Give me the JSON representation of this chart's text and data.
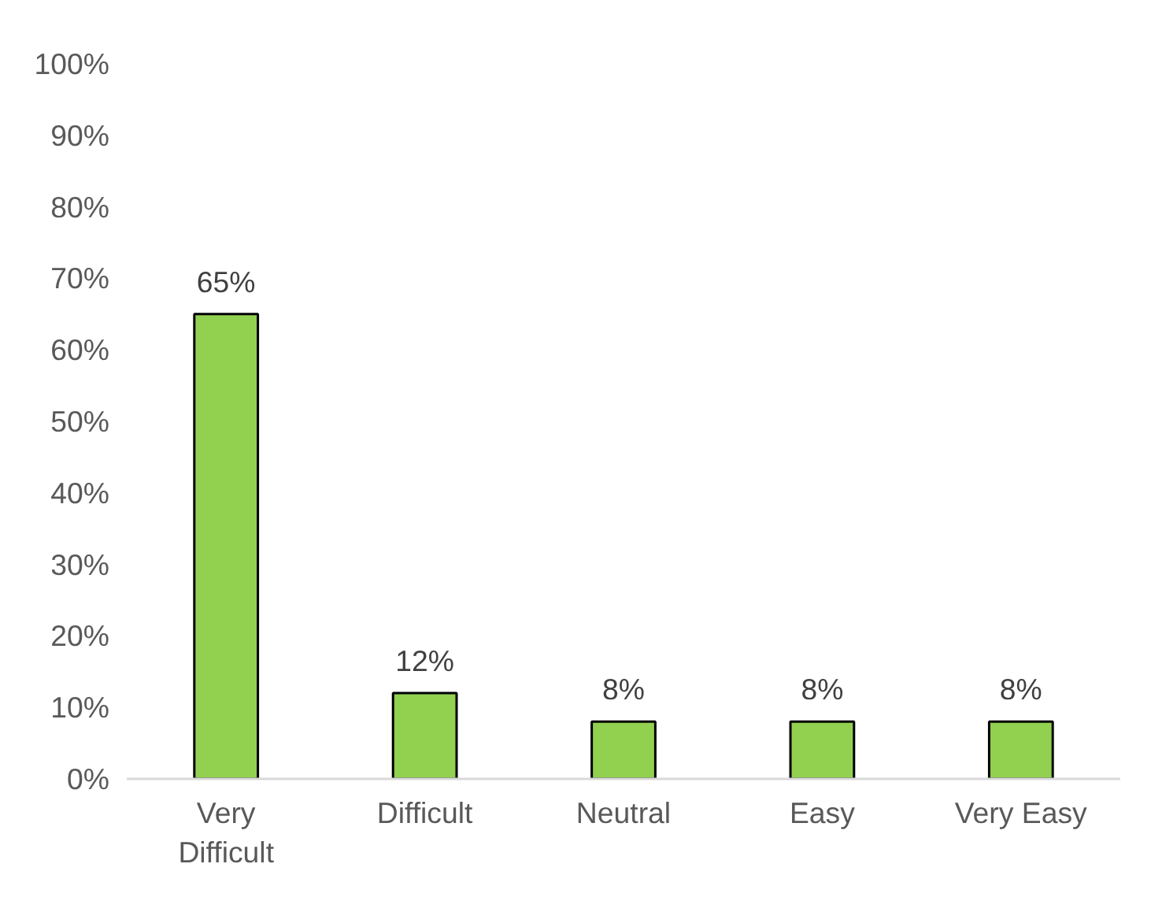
{
  "chart_data": {
    "type": "bar",
    "categories": [
      "Very Difficult",
      "Difficult",
      "Neutral",
      "Easy",
      "Very Easy"
    ],
    "values": [
      65,
      12,
      8,
      8,
      8
    ],
    "color": "#92d050",
    "ylim": [
      0,
      100
    ],
    "yticks": [
      {
        "value": 0,
        "label": "0%"
      },
      {
        "value": 10,
        "label": "10%"
      },
      {
        "value": 20,
        "label": "20%"
      },
      {
        "value": 30,
        "label": "30%"
      },
      {
        "value": 40,
        "label": "40%"
      },
      {
        "value": 50,
        "label": "50%"
      },
      {
        "value": 60,
        "label": "60%"
      },
      {
        "value": 70,
        "label": "70%"
      },
      {
        "value": 80,
        "label": "80%"
      },
      {
        "value": 90,
        "label": "90%"
      },
      {
        "value": 100,
        "label": "100%"
      }
    ],
    "value_labels": [
      "65%",
      "12%",
      "8%",
      "8%",
      "8%"
    ],
    "grid": false
  }
}
